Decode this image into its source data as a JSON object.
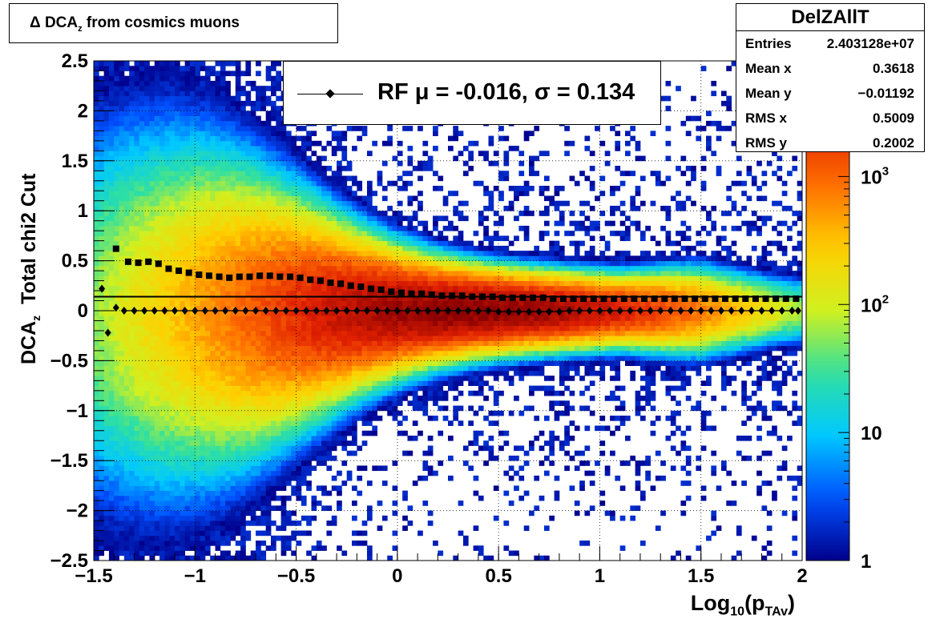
{
  "chart_data": {
    "type": "heatmap",
    "title": "Δ DCA_z from cosmics muons",
    "title_parts": {
      "delta": "Δ",
      "main": "DCA",
      "sub": "z",
      "rest": "from cosmics muons"
    },
    "xlabel_parts": {
      "pre": "Log",
      "sub1": "10",
      "mid": "(p",
      "sub2": "TAv",
      "post": ")"
    },
    "ylabel_parts": {
      "main": "DCA",
      "sub": "z",
      "rest": "Total chi2 Cut"
    },
    "xlim": [
      -1.5,
      2.0
    ],
    "ylim": [
      -2.5,
      2.5
    ],
    "x_ticks": [
      -1.5,
      -1,
      -0.5,
      0,
      0.5,
      1,
      1.5,
      2
    ],
    "x_tick_labels": [
      "−1.5",
      "−1",
      "−0.5",
      "0",
      "0.5",
      "1",
      "1.5",
      "2"
    ],
    "y_ticks": [
      -2.5,
      -2,
      -1.5,
      -1,
      -0.5,
      0,
      0.5,
      1,
      1.5,
      2,
      2.5
    ],
    "y_tick_labels": [
      "−2.5",
      "−2",
      "−1.5",
      "−1",
      "−0.5",
      "0",
      "0.5",
      "1",
      "1.5",
      "2",
      "2.5"
    ],
    "grid": true,
    "z_scale": "log",
    "z_range": [
      1,
      8000
    ],
    "z_ticks": [
      1,
      10,
      100,
      1000
    ],
    "z_tick_labels": [
      {
        "base": "1",
        "exp": ""
      },
      {
        "base": "10",
        "exp": ""
      },
      {
        "base": "10",
        "exp": "2"
      },
      {
        "base": "10",
        "exp": "3"
      }
    ],
    "colormap": [
      "#00008b",
      "#0050ff",
      "#00c8ff",
      "#30e0a0",
      "#d0f020",
      "#ffd000",
      "#ff7000",
      "#e02000",
      "#8b0000"
    ],
    "fit_line": {
      "y": 0.14
    },
    "series": [
      {
        "marker": "diamond",
        "points": [
          [
            -1.46,
            0.22
          ],
          [
            -1.43,
            -0.22
          ],
          [
            -1.39,
            0.03
          ],
          [
            -1.35,
            0.0
          ],
          [
            -1.3,
            0.0
          ],
          [
            -1.25,
            0.0
          ],
          [
            -1.2,
            0.0
          ],
          [
            -1.15,
            0.0
          ],
          [
            -1.1,
            0.0
          ],
          [
            -1.05,
            0.0
          ],
          [
            -1.0,
            0.0
          ],
          [
            -0.95,
            0.0
          ],
          [
            -0.9,
            0.0
          ],
          [
            -0.85,
            0.0
          ],
          [
            -0.8,
            0.0
          ],
          [
            -0.75,
            0.0
          ],
          [
            -0.7,
            0.0
          ],
          [
            -0.65,
            0.0
          ],
          [
            -0.6,
            0.0
          ],
          [
            -0.55,
            0.0
          ],
          [
            -0.5,
            0.0
          ],
          [
            -0.45,
            0.0
          ],
          [
            -0.4,
            0.0
          ],
          [
            -0.35,
            0.0
          ],
          [
            -0.3,
            0.0
          ],
          [
            -0.25,
            0.0
          ],
          [
            -0.2,
            0.0
          ],
          [
            -0.15,
            0.0
          ],
          [
            -0.1,
            0.0
          ],
          [
            -0.05,
            0.0
          ],
          [
            0.0,
            0.0
          ],
          [
            0.05,
            0.0
          ],
          [
            0.1,
            0.0
          ],
          [
            0.15,
            0.0
          ],
          [
            0.2,
            0.0
          ],
          [
            0.25,
            0.0
          ],
          [
            0.3,
            0.0
          ],
          [
            0.35,
            0.0
          ],
          [
            0.4,
            0.0
          ],
          [
            0.45,
            0.0
          ],
          [
            0.5,
            -0.01
          ],
          [
            0.55,
            -0.01
          ],
          [
            0.6,
            -0.01
          ],
          [
            0.65,
            -0.01
          ],
          [
            0.7,
            -0.01
          ],
          [
            0.75,
            -0.01
          ],
          [
            0.8,
            -0.01
          ],
          [
            0.85,
            0.0
          ],
          [
            0.9,
            0.0
          ],
          [
            0.95,
            0.0
          ],
          [
            1.0,
            0.0
          ],
          [
            1.05,
            0.0
          ],
          [
            1.1,
            0.0
          ],
          [
            1.15,
            0.0
          ],
          [
            1.2,
            0.0
          ],
          [
            1.25,
            0.0
          ],
          [
            1.3,
            0.0
          ],
          [
            1.35,
            0.0
          ],
          [
            1.4,
            0.0
          ],
          [
            1.45,
            0.0
          ],
          [
            1.5,
            0.0
          ],
          [
            1.55,
            0.0
          ],
          [
            1.6,
            0.0
          ],
          [
            1.65,
            0.0
          ],
          [
            1.7,
            0.0
          ],
          [
            1.75,
            0.0
          ],
          [
            1.8,
            0.0
          ],
          [
            1.85,
            0.0
          ],
          [
            1.9,
            0.0
          ],
          [
            1.95,
            0.0
          ],
          [
            1.98,
            0.0
          ]
        ]
      },
      {
        "marker": "square",
        "points": [
          [
            -1.39,
            0.62
          ],
          [
            -1.33,
            0.49
          ],
          [
            -1.28,
            0.48
          ],
          [
            -1.23,
            0.49
          ],
          [
            -1.18,
            0.47
          ],
          [
            -1.13,
            0.42
          ],
          [
            -1.08,
            0.4
          ],
          [
            -1.03,
            0.38
          ],
          [
            -0.98,
            0.36
          ],
          [
            -0.93,
            0.35
          ],
          [
            -0.88,
            0.34
          ],
          [
            -0.83,
            0.33
          ],
          [
            -0.78,
            0.34
          ],
          [
            -0.73,
            0.34
          ],
          [
            -0.68,
            0.35
          ],
          [
            -0.63,
            0.35
          ],
          [
            -0.58,
            0.34
          ],
          [
            -0.53,
            0.34
          ],
          [
            -0.48,
            0.33
          ],
          [
            -0.43,
            0.31
          ],
          [
            -0.38,
            0.3
          ],
          [
            -0.33,
            0.28
          ],
          [
            -0.28,
            0.27
          ],
          [
            -0.23,
            0.25
          ],
          [
            -0.18,
            0.24
          ],
          [
            -0.13,
            0.22
          ],
          [
            -0.08,
            0.21
          ],
          [
            -0.03,
            0.19
          ],
          [
            0.02,
            0.18
          ],
          [
            0.07,
            0.17
          ],
          [
            0.12,
            0.17
          ],
          [
            0.17,
            0.16
          ],
          [
            0.22,
            0.15
          ],
          [
            0.27,
            0.15
          ],
          [
            0.32,
            0.15
          ],
          [
            0.37,
            0.14
          ],
          [
            0.42,
            0.14
          ],
          [
            0.47,
            0.14
          ],
          [
            0.52,
            0.13
          ],
          [
            0.57,
            0.13
          ],
          [
            0.62,
            0.13
          ],
          [
            0.67,
            0.13
          ],
          [
            0.72,
            0.13
          ],
          [
            0.77,
            0.12
          ],
          [
            0.82,
            0.12
          ],
          [
            0.87,
            0.12
          ],
          [
            0.92,
            0.12
          ],
          [
            0.97,
            0.12
          ],
          [
            1.02,
            0.12
          ],
          [
            1.07,
            0.12
          ],
          [
            1.12,
            0.12
          ],
          [
            1.17,
            0.12
          ],
          [
            1.22,
            0.12
          ],
          [
            1.27,
            0.12
          ],
          [
            1.32,
            0.12
          ],
          [
            1.37,
            0.12
          ],
          [
            1.42,
            0.12
          ],
          [
            1.47,
            0.12
          ],
          [
            1.52,
            0.12
          ],
          [
            1.57,
            0.12
          ],
          [
            1.62,
            0.12
          ],
          [
            1.67,
            0.12
          ],
          [
            1.72,
            0.12
          ],
          [
            1.77,
            0.12
          ],
          [
            1.82,
            0.12
          ],
          [
            1.87,
            0.12
          ],
          [
            1.92,
            0.12
          ],
          [
            1.97,
            0.12
          ]
        ]
      }
    ]
  },
  "legend": {
    "text": "RF μ = -0.016, σ =   0.134",
    "marker": "diamond"
  },
  "stats": {
    "title": "DelZAllT",
    "rows": [
      {
        "label": "Entries",
        "value": "2.403128e+07"
      },
      {
        "label": "Mean x",
        "value": "0.3618"
      },
      {
        "label": "Mean y",
        "value": "−0.01192"
      },
      {
        "label": "RMS x",
        "value": "0.5009"
      },
      {
        "label": "RMS y",
        "value": "0.2002"
      }
    ]
  }
}
